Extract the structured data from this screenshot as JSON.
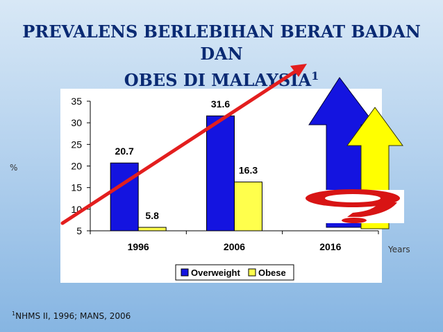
{
  "slide": {
    "title_line1": "PREVALENS BERLEBIHAN BERAT BADAN DAN",
    "title_line2": "OBES DI MALAYSIA",
    "title_superscript": "1",
    "y_axis_label": "%",
    "x_axis_label": "Years",
    "footnote_superscript": "1",
    "footnote_text": "NHMS II, 1996; MANS, 2006"
  },
  "chart_data": {
    "type": "bar",
    "categories": [
      "1996",
      "2006",
      "2016"
    ],
    "series": [
      {
        "name": "Overweight",
        "values": [
          20.7,
          31.6,
          null
        ],
        "color": "#1414e0"
      },
      {
        "name": "Obese",
        "values": [
          5.8,
          16.3,
          null
        ],
        "color": "#ffff4c"
      }
    ],
    "data_labels": [
      [
        "20.7",
        "31.6",
        ""
      ],
      [
        "5.8",
        "16.3",
        ""
      ]
    ],
    "ylim": [
      5,
      35
    ],
    "yticks": [
      5,
      10,
      15,
      20,
      25,
      30,
      35
    ],
    "grid": false,
    "legend_position": "bottom",
    "annotations": [
      {
        "type": "trend-arrow",
        "color": "#e31e1e"
      },
      {
        "type": "up-arrow",
        "series": "Overweight",
        "category": "2016",
        "color": "#1414e0"
      },
      {
        "type": "up-arrow",
        "series": "Obese",
        "category": "2016",
        "color": "#ffff00"
      },
      {
        "type": "question-mark",
        "category": "2016",
        "color": "#d81414"
      }
    ]
  }
}
